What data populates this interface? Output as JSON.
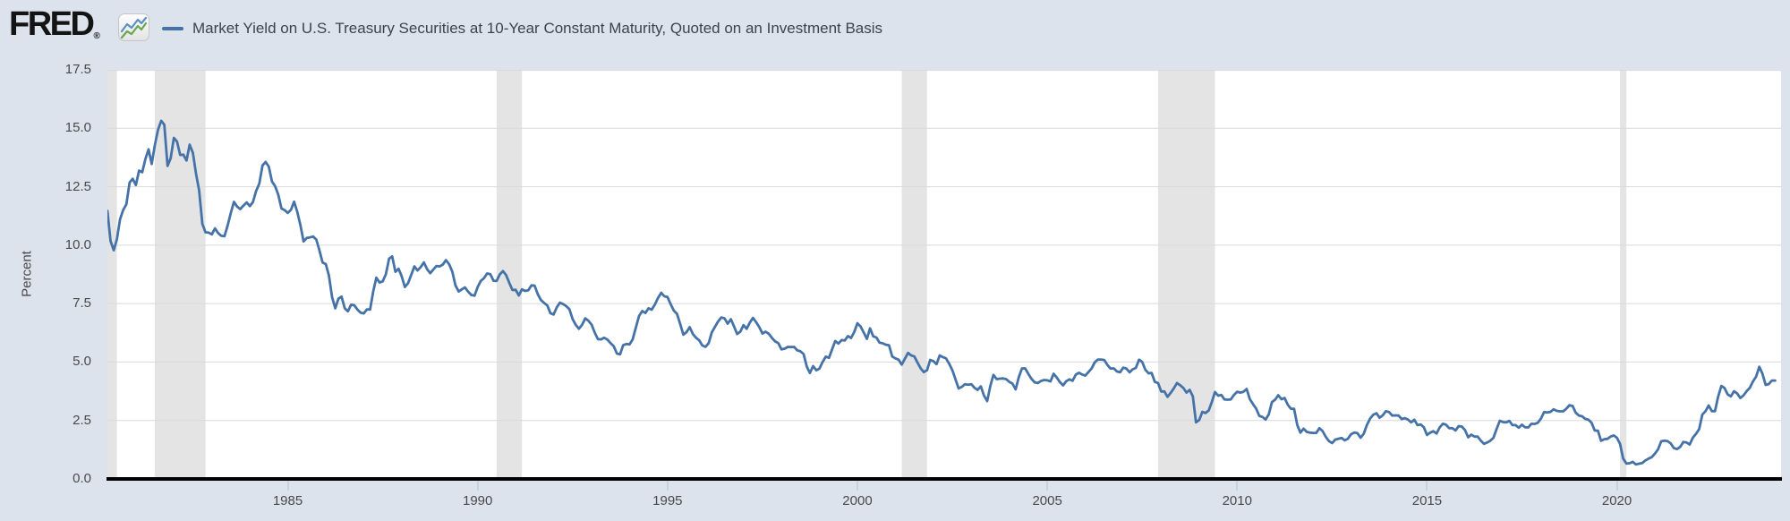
{
  "logo": {
    "text": "FRED",
    "registered": "®",
    "icon": "line-chart-icon",
    "icon_colors": {
      "blue": "#5a8fc7",
      "green": "#67a74f"
    }
  },
  "colors": {
    "background": "#dce3ed",
    "plot_background": "#ffffff",
    "gridline": "#d9d9d9",
    "recession_band": "#e4e4e4",
    "axis_line": "#000000",
    "tick_mark": "#c5d2e0",
    "tick_label": "#494949",
    "legend_text": "#3a444e",
    "logo_text": "#141414",
    "line": "#4572a7"
  },
  "chart_data": {
    "type": "line",
    "title": "Market Yield on U.S. Treasury Securities at 10-Year Constant Maturity, Quoted on an Investment Basis",
    "ylabel": "Percent",
    "ylim": [
      0,
      17.5
    ],
    "yticks": [
      "0.0",
      "2.5",
      "5.0",
      "7.5",
      "10.0",
      "12.5",
      "15.0",
      "17.5"
    ],
    "xticks": [
      1985,
      1990,
      1995,
      2000,
      2005,
      2010,
      2015,
      2020
    ],
    "x_start": "1980-04",
    "x_end": "2024-03",
    "frequency": "monthly",
    "grid": true,
    "legend_position": "top",
    "series": [
      {
        "color": "#4572a7",
        "values": [
          11.47,
          10.18,
          9.78,
          10.25,
          11.1,
          11.51,
          11.75,
          12.68,
          12.84,
          12.57,
          13.19,
          13.12,
          13.68,
          14.1,
          13.47,
          14.28,
          14.94,
          15.32,
          15.15,
          13.39,
          13.72,
          14.59,
          14.43,
          13.86,
          13.87,
          13.62,
          14.3,
          13.95,
          13.06,
          12.34,
          10.91,
          10.55,
          10.54,
          10.46,
          10.72,
          10.51,
          10.4,
          10.38,
          10.85,
          11.38,
          11.85,
          11.65,
          11.54,
          11.69,
          11.83,
          11.67,
          11.84,
          12.32,
          12.63,
          13.41,
          13.56,
          13.36,
          12.72,
          12.52,
          12.16,
          11.57,
          11.5,
          11.38,
          11.51,
          11.86,
          11.43,
          10.85,
          10.16,
          10.31,
          10.33,
          10.37,
          10.24,
          9.78,
          9.26,
          9.19,
          8.7,
          7.78,
          7.3,
          7.71,
          7.8,
          7.3,
          7.17,
          7.45,
          7.43,
          7.25,
          7.11,
          7.08,
          7.25,
          7.25,
          8.02,
          8.61,
          8.4,
          8.45,
          8.76,
          9.42,
          9.52,
          8.86,
          8.99,
          8.67,
          8.21,
          8.37,
          8.72,
          9.09,
          8.92,
          9.06,
          9.26,
          8.98,
          8.8,
          8.96,
          9.11,
          9.09,
          9.17,
          9.36,
          9.18,
          8.86,
          8.28,
          8.02,
          8.11,
          8.19,
          8.01,
          7.87,
          7.84,
          8.21,
          8.47,
          8.59,
          8.79,
          8.76,
          8.48,
          8.47,
          8.75,
          8.89,
          8.72,
          8.39,
          8.08,
          8.09,
          7.85,
          8.11,
          8.04,
          8.07,
          8.28,
          8.27,
          7.9,
          7.65,
          7.53,
          7.42,
          7.09,
          7.03,
          7.34,
          7.54,
          7.48,
          7.39,
          7.26,
          6.84,
          6.59,
          6.42,
          6.59,
          6.87,
          6.77,
          6.6,
          6.26,
          5.98,
          5.97,
          6.04,
          5.96,
          5.81,
          5.68,
          5.36,
          5.33,
          5.72,
          5.77,
          5.75,
          5.97,
          6.48,
          6.97,
          7.18,
          7.1,
          7.3,
          7.24,
          7.46,
          7.74,
          7.96,
          7.81,
          7.78,
          7.47,
          7.2,
          7.06,
          6.63,
          6.17,
          6.28,
          6.49,
          6.2,
          6.04,
          5.93,
          5.71,
          5.65,
          5.81,
          6.27,
          6.51,
          6.74,
          6.91,
          6.87,
          6.64,
          6.83,
          6.53,
          6.2,
          6.3,
          6.58,
          6.42,
          6.69,
          6.89,
          6.71,
          6.49,
          6.22,
          6.3,
          6.21,
          6.03,
          5.88,
          5.81,
          5.54,
          5.57,
          5.65,
          5.64,
          5.65,
          5.5,
          5.46,
          5.34,
          4.81,
          4.53,
          4.83,
          4.65,
          4.72,
          5.0,
          5.23,
          5.18,
          5.54,
          5.9,
          5.79,
          5.94,
          5.92,
          6.11,
          6.03,
          6.28,
          6.66,
          6.52,
          6.26,
          5.99,
          6.44,
          6.1,
          6.05,
          5.83,
          5.8,
          5.74,
          5.72,
          5.24,
          5.16,
          5.1,
          4.89,
          5.14,
          5.39,
          5.28,
          5.24,
          4.97,
          4.73,
          4.57,
          4.65,
          5.09,
          5.04,
          4.91,
          5.28,
          5.21,
          5.16,
          4.93,
          4.65,
          4.26,
          3.87,
          3.94,
          4.05,
          4.03,
          4.05,
          3.9,
          3.81,
          3.96,
          3.57,
          3.33,
          3.98,
          4.45,
          4.27,
          4.29,
          4.3,
          4.27,
          4.15,
          4.08,
          3.83,
          4.35,
          4.72,
          4.73,
          4.5,
          4.28,
          4.13,
          4.1,
          4.19,
          4.23,
          4.22,
          4.17,
          4.5,
          4.34,
          4.14,
          4.0,
          4.18,
          4.26,
          4.2,
          4.46,
          4.54,
          4.47,
          4.42,
          4.57,
          4.72,
          4.99,
          5.11,
          5.11,
          5.09,
          4.88,
          4.72,
          4.73,
          4.6,
          4.56,
          4.76,
          4.72,
          4.56,
          4.69,
          4.75,
          5.1,
          5.0,
          4.67,
          4.52,
          4.53,
          4.15,
          4.1,
          3.74,
          3.74,
          3.51,
          3.68,
          3.88,
          4.1,
          4.01,
          3.89,
          3.69,
          3.81,
          3.53,
          2.42,
          2.52,
          2.87,
          2.82,
          2.93,
          3.29,
          3.72,
          3.56,
          3.59,
          3.4,
          3.39,
          3.4,
          3.59,
          3.73,
          3.69,
          3.73,
          3.85,
          3.42,
          3.2,
          3.01,
          2.7,
          2.65,
          2.54,
          2.76,
          3.29,
          3.39,
          3.58,
          3.41,
          3.46,
          3.17,
          3.0,
          3.0,
          2.3,
          1.98,
          2.15,
          2.01,
          1.98,
          1.97,
          1.97,
          2.17,
          2.05,
          1.8,
          1.62,
          1.53,
          1.68,
          1.72,
          1.75,
          1.65,
          1.72,
          1.91,
          1.98,
          1.96,
          1.76,
          1.93,
          2.3,
          2.58,
          2.74,
          2.81,
          2.62,
          2.72,
          2.9,
          2.86,
          2.71,
          2.72,
          2.71,
          2.56,
          2.6,
          2.54,
          2.42,
          2.53,
          2.3,
          2.33,
          2.21,
          1.88,
          1.98,
          2.04,
          1.94,
          2.2,
          2.36,
          2.32,
          2.17,
          2.17,
          2.07,
          2.26,
          2.24,
          2.09,
          1.78,
          1.89,
          1.81,
          1.81,
          1.64,
          1.5,
          1.56,
          1.63,
          1.76,
          2.14,
          2.49,
          2.43,
          2.42,
          2.48,
          2.3,
          2.3,
          2.19,
          2.32,
          2.21,
          2.2,
          2.36,
          2.35,
          2.4,
          2.58,
          2.86,
          2.84,
          2.87,
          2.98,
          2.91,
          2.89,
          2.89,
          3.0,
          3.15,
          3.12,
          2.83,
          2.71,
          2.68,
          2.57,
          2.53,
          2.4,
          2.07,
          2.06,
          1.63,
          1.7,
          1.71,
          1.81,
          1.86,
          1.76,
          1.5,
          0.87,
          0.66,
          0.67,
          0.73,
          0.62,
          0.65,
          0.68,
          0.79,
          0.87,
          0.93,
          1.08,
          1.26,
          1.61,
          1.64,
          1.62,
          1.52,
          1.32,
          1.28,
          1.37,
          1.58,
          1.56,
          1.47,
          1.76,
          1.93,
          2.13,
          2.75,
          2.9,
          3.14,
          2.9,
          2.9,
          3.52,
          3.98,
          3.89,
          3.62,
          3.53,
          3.75,
          3.66,
          3.46,
          3.57,
          3.75,
          3.9,
          4.17,
          4.38,
          4.8,
          4.5,
          4.02,
          4.06,
          4.21,
          4.21
        ]
      }
    ],
    "recession_bands": [
      {
        "label": "1980 recession",
        "from": 0,
        "to": 3
      },
      {
        "label": "1981–1982 recession",
        "from": 15,
        "to": 31
      },
      {
        "label": "1990–1991 recession",
        "from": 123,
        "to": 131
      },
      {
        "label": "2001 recession",
        "from": 251,
        "to": 259
      },
      {
        "label": "2007–2009 recession",
        "from": 332,
        "to": 350
      },
      {
        "label": "2020 recession",
        "from": 478,
        "to": 480
      }
    ]
  }
}
